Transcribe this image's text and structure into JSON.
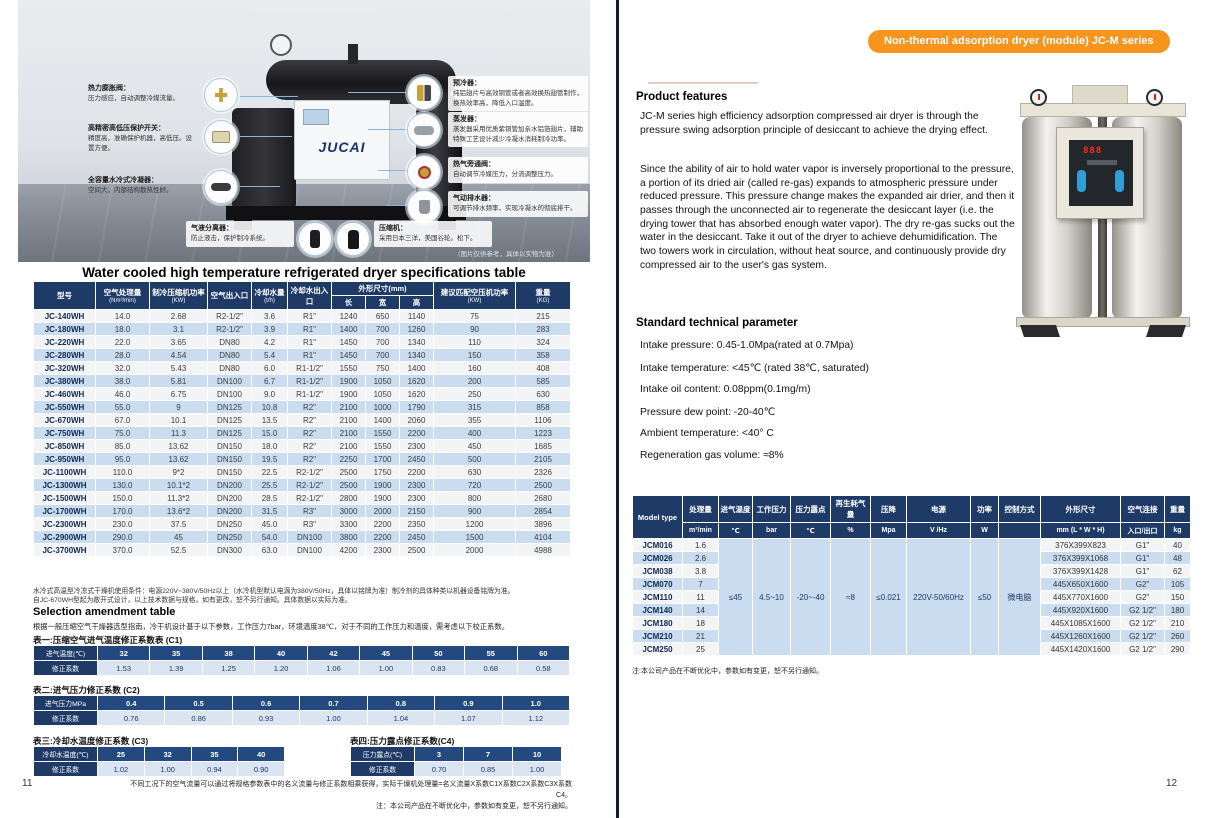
{
  "left_page": {
    "page_number": "11",
    "photo": {
      "brand": "JUCAI",
      "caption": "（图片仅供参考，具体以实物为准）",
      "left_callouts": [
        {
          "title": "热力膨胀阀：",
          "desc": "压力感应，自动调整冷媒流量。"
        },
        {
          "title": "高精密高低压保护开关：",
          "desc": "精度高，准确保护机器，高低压。设置方便。"
        },
        {
          "title": "全容量水冷式冷凝器：",
          "desc": "空间大，内部结构散热性好。"
        }
      ],
      "right_callouts": [
        {
          "title": "预冷器：",
          "desc": "纯铝翅片与高效铜管或者高效换热翅管制作，换热效率高，降低入口温度。"
        },
        {
          "title": "蒸发器：",
          "desc": "蒸发器采用优质紫铜管加亲水铝箔翅片，辅助特殊工艺设计减少冷凝水消耗制冷功率。"
        },
        {
          "title": "热气旁通阀：",
          "desc": "自动调节冷媒压力，分流调整压力。"
        },
        {
          "title": "气动排水器：",
          "desc": "可调节排水频率，实现冷凝水的彻底排干。"
        }
      ],
      "bottom_callouts": [
        {
          "title": "气液分离器：",
          "desc": "防止液击，保护制冷系统。"
        },
        {
          "title": "压缩机：",
          "desc": "采用日本三洋，美国谷轮。松下。"
        }
      ]
    },
    "spec_table": {
      "title": "Water cooled high temperature refrigerated dryer specifications table",
      "headers": {
        "model": "型号",
        "capacity": "空气处理量",
        "capacity_unit": "(Nm³/min)",
        "power": "制冷压缩机功率",
        "power_unit": "(KW)",
        "air_port": "空气出入口",
        "water": "冷却水量",
        "water_unit": "(t/h)",
        "water_port": "冷却水出入口",
        "dims": "外形尺寸(mm)",
        "dim_l": "长",
        "dim_w": "宽",
        "dim_h": "高",
        "comp": "建议匹配空压机功率",
        "comp_unit": "(KW)",
        "weight": "重量",
        "weight_unit": "(KG)"
      },
      "rows": [
        [
          "JC-140WH",
          "14.0",
          "2.68",
          "R2-1/2\"",
          "3.6",
          "R1\"",
          "1240",
          "650",
          "1140",
          "75",
          "215"
        ],
        [
          "JC-180WH",
          "18.0",
          "3.1",
          "R2-1/2\"",
          "3.9",
          "R1\"",
          "1400",
          "700",
          "1260",
          "90",
          "283"
        ],
        [
          "JC-220WH",
          "22.0",
          "3.65",
          "DN80",
          "4.2",
          "R1\"",
          "1450",
          "700",
          "1340",
          "110",
          "324"
        ],
        [
          "JC-280WH",
          "28.0",
          "4.54",
          "DN80",
          "5.4",
          "R1\"",
          "1450",
          "700",
          "1340",
          "150",
          "358"
        ],
        [
          "JC-320WH",
          "32.0",
          "5.43",
          "DN80",
          "6.0",
          "R1-1/2\"",
          "1550",
          "750",
          "1400",
          "160",
          "408"
        ],
        [
          "JC-380WH",
          "38.0",
          "5.81",
          "DN100",
          "6.7",
          "R1-1/2\"",
          "1900",
          "1050",
          "1620",
          "200",
          "585"
        ],
        [
          "JC-460WH",
          "46.0",
          "6.75",
          "DN100",
          "9.0",
          "R1-1/2\"",
          "1900",
          "1050",
          "1620",
          "250",
          "630"
        ],
        [
          "JC-550WH",
          "55.0",
          "9",
          "DN125",
          "10.8",
          "R2\"",
          "2100",
          "1000",
          "1790",
          "315",
          "858"
        ],
        [
          "JC-670WH",
          "67.0",
          "10.1",
          "DN125",
          "13.5",
          "R2\"",
          "2100",
          "1400",
          "2060",
          "355",
          "1106"
        ],
        [
          "JC-750WH",
          "75.0",
          "11.3",
          "DN125",
          "15.0",
          "R2\"",
          "2100",
          "1550",
          "2200",
          "400",
          "1223"
        ],
        [
          "JC-850WH",
          "85.0",
          "13.62",
          "DN150",
          "18.0",
          "R2\"",
          "2100",
          "1550",
          "2300",
          "450",
          "1685"
        ],
        [
          "JC-950WH",
          "95.0",
          "13.62",
          "DN150",
          "19.5",
          "R2\"",
          "2250",
          "1700",
          "2450",
          "500",
          "2105"
        ],
        [
          "JC-1100WH",
          "110.0",
          "9*2",
          "DN150",
          "22.5",
          "R2-1/2\"",
          "2500",
          "1750",
          "2200",
          "630",
          "2326"
        ],
        [
          "JC-1300WH",
          "130.0",
          "10.1*2",
          "DN200",
          "25.5",
          "R2-1/2\"",
          "2500",
          "1900",
          "2300",
          "720",
          "2500"
        ],
        [
          "JC-1500WH",
          "150.0",
          "11.3*2",
          "DN200",
          "28.5",
          "R2-1/2\"",
          "2800",
          "1900",
          "2300",
          "800",
          "2680"
        ],
        [
          "JC-1700WH",
          "170.0",
          "13.6*2",
          "DN200",
          "31.5",
          "R3\"",
          "3000",
          "2000",
          "2150",
          "900",
          "2854"
        ],
        [
          "JC-2300WH",
          "230.0",
          "37.5",
          "DN250",
          "45.0",
          "R3\"",
          "3300",
          "2200",
          "2350",
          "1200",
          "3896"
        ],
        [
          "JC-2900WH",
          "290.0",
          "45",
          "DN250",
          "54.0",
          "DN100",
          "3800",
          "2200",
          "2450",
          "1500",
          "4104"
        ],
        [
          "JC-3700WH",
          "370.0",
          "52.5",
          "DN300",
          "63.0",
          "DN100",
          "4200",
          "2300",
          "2500",
          "2000",
          "4988"
        ]
      ],
      "footnotes": [
        "水冷式高温型冷冻式干燥机使用条件：电源220V~380V/50Hz以上（水冷机型默认电源为380V/50Hz，具体以铭牌为准）制冷剂的具体种类以机器设备铭牌为准。",
        "自JC-670WH型起为敞开式设计，以上技术数据与规格，如有更改，恕不另行通知。具体数据以实际为准。"
      ]
    },
    "amendment": {
      "title": "Selection amendment table",
      "note": "根据一般压缩空气干燥器选型指南，冷干机设计基于以下参数，工作压力7bar，环境温度38℃，对于不同的工作压力和温度，需考虑以下校正系数。",
      "tables": [
        {
          "title": "表一:压缩空气进气温度修正系数表 (C1)",
          "param_label": "进气温度(℃)",
          "values": [
            "32",
            "35",
            "38",
            "40",
            "42",
            "45",
            "50",
            "55",
            "60"
          ],
          "coef_label": "修正系数",
          "coefs": [
            "1.53",
            "1.39",
            "1.25",
            "1.20",
            "1.06",
            "1.00",
            "0.83",
            "0.68",
            "0.58"
          ]
        },
        {
          "title": "表二:进气压力修正系数 (C2)",
          "param_label": "进气压力MPa",
          "values": [
            "0.4",
            "0.5",
            "0.6",
            "0.7",
            "0.8",
            "0.9",
            "1.0"
          ],
          "coef_label": "修正系数",
          "coefs": [
            "0.76",
            "0.86",
            "0.93",
            "1.00",
            "1.04",
            "1.07",
            "1.12"
          ]
        },
        {
          "title": "表三:冷却水温度修正系数 (C3)",
          "param_label": "冷却水温度(℃)",
          "values": [
            "25",
            "32",
            "35",
            "40"
          ],
          "coef_label": "修正系数",
          "coefs": [
            "1.02",
            "1.00",
            "0.94",
            "0.90"
          ]
        },
        {
          "title": "表四:压力露点修正系数(C4)",
          "param_label": "压力露点(℃)",
          "values": [
            "3",
            "7",
            "10"
          ],
          "coef_label": "修正系数",
          "coefs": [
            "0.70",
            "0.85",
            "1.00"
          ]
        }
      ],
      "bottom_notes": [
        "不同工况下的空气流量可以通过将规格参数表中的名义流量与修正系数相乘获得，实际干燥机处理量=名义流量X系数C1X系数C2X系数C3X系数C4。",
        "注：本公司产品在不断优化中，参数如有变更，恕不另行通知。"
      ]
    }
  },
  "right_page": {
    "page_number": "12",
    "badge": "Non-thermal adsorption dryer (module) JC-M series",
    "features": {
      "title": "Product features",
      "paragraphs": [
        "JC-M series high efficiency adsorption compressed air dryer is through the pressure swing adsorption principle of desiccant to achieve the drying effect.",
        "Since the ability of air to hold water vapor is inversely proportional to the pressure, a portion of its dried air (called re-gas) expands to atmospheric pressure under reduced pressure. This pressure change makes the expanded air drier, and then it passes through the unconnected air to regenerate the desiccant layer (i.e. the drying tower that has absorbed enough water vapor). The dry re-gas sucks out the water in the desiccant. Take it out of the dryer to achieve dehumidification. The two towers work in circulation, without heat source, and continuously provide dry compressed air to the user's gas system."
      ]
    },
    "params": {
      "title": "Standard technical parameter",
      "items": [
        "Intake pressure: 0.45-1.0Mpa(rated at 0.7Mpa)",
        "Intake temperature: <45℃ (rated 38℃, saturated)",
        "Intake oil content: 0.08ppm(0.1mg/m)",
        "Pressure dew point: -20-40℃",
        "Ambient temperature: <40° C",
        "Regeneration gas volume: ≈8%"
      ]
    },
    "table": {
      "headers_row1": [
        "Model type",
        "处理量",
        "进气温度",
        "工作压力",
        "压力露点",
        "再生耗气量",
        "压降",
        "电源",
        "功率",
        "控制方式",
        "外形尺寸",
        "空气连接",
        "重量"
      ],
      "headers_row2": [
        "m³/min",
        "℃",
        "bar",
        "℃",
        "%",
        "Mpa",
        "V /Hz",
        "W",
        "",
        "mm (L * W * H)",
        "入口/出口",
        "kg"
      ],
      "merged": [
        "≤45",
        "4.5~10",
        "-20~-40",
        "≈8",
        "≤0.021",
        "220V-50/60Hz",
        "≤50",
        "微电脑"
      ],
      "rows": [
        {
          "model": "JCM016",
          "capacity": "1.6",
          "dims": "376X399X823",
          "conn": "G1\"",
          "weight": "40"
        },
        {
          "model": "JCM026",
          "capacity": "2.6",
          "dims": "376X399X1068",
          "conn": "G1\"",
          "weight": "48"
        },
        {
          "model": "JCM038",
          "capacity": "3.8",
          "dims": "376X399X1428",
          "conn": "G1\"",
          "weight": "62"
        },
        {
          "model": "JCM070",
          "capacity": "7",
          "dims": "445X650X1600",
          "conn": "G2\"",
          "weight": "105"
        },
        {
          "model": "JCM110",
          "capacity": "11",
          "dims": "445X770X1600",
          "conn": "G2\"",
          "weight": "150"
        },
        {
          "model": "JCM140",
          "capacity": "14",
          "dims": "445X920X1600",
          "conn": "G2 1/2\"",
          "weight": "180"
        },
        {
          "model": "JCM180",
          "capacity": "18",
          "dims": "445X1085X1600",
          "conn": "G2 1/2\"",
          "weight": "210"
        },
        {
          "model": "JCM210",
          "capacity": "21",
          "dims": "445X1260X1600",
          "conn": "G2 1/2\"",
          "weight": "260"
        },
        {
          "model": "JCM250",
          "capacity": "25",
          "dims": "445X1420X1600",
          "conn": "G2 1/2\"",
          "weight": "290"
        }
      ],
      "note": "注:本公司产品在不断优化中，参数如有变更，恕不另行通知。"
    }
  },
  "colors": {
    "accent_orange": "#f7941e",
    "table_navy": "#1e3a66",
    "row_blue": "#c9dcf0",
    "row_light": "#f3f4f5"
  }
}
